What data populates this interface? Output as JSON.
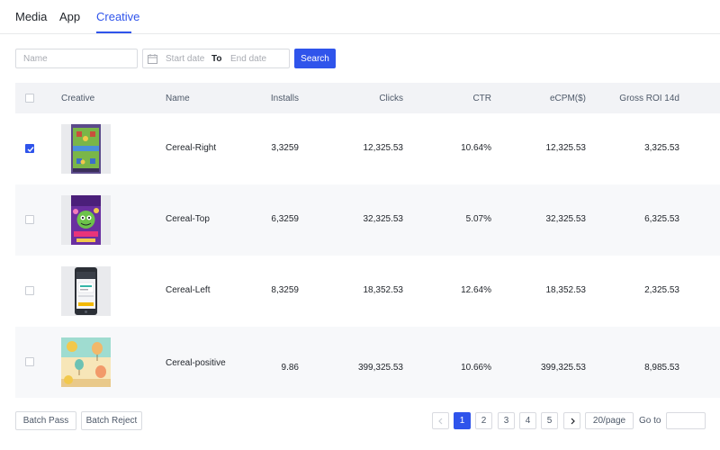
{
  "tabs": [
    {
      "label": "Media"
    },
    {
      "label": "App"
    },
    {
      "label": "Creative"
    }
  ],
  "active_tab": "Creative",
  "filters": {
    "name_placeholder": "Name",
    "start_placeholder": "Start date",
    "to_label": "To",
    "end_placeholder": "End date",
    "search_label": "Search"
  },
  "table": {
    "headers": {
      "creative": "Creative",
      "name": "Name",
      "installs": "Installs",
      "clicks": "Clicks",
      "ctr": "CTR",
      "ecpm": "eCPM($)",
      "roi": "Gross ROI 14d"
    },
    "rows": [
      {
        "checked": true,
        "thumb": "game-board-thumbnail",
        "name": "Cereal-Right",
        "installs": "3,3259",
        "clicks": "12,325.53",
        "ctr": "10.64%",
        "ecpm": "12,325.53",
        "roi": "3,325.53"
      },
      {
        "checked": false,
        "thumb": "monster-game-thumbnail",
        "name": "Cereal-Top",
        "installs": "6,3259",
        "clicks": "32,325.53",
        "ctr": "5.07%",
        "ecpm": "32,325.53",
        "roi": "6,325.53"
      },
      {
        "checked": false,
        "thumb": "phone-screen-thumbnail",
        "name": "Cereal-Left",
        "installs": "8,3259",
        "clicks": "18,352.53",
        "ctr": "12.64%",
        "ecpm": "18,352.53",
        "roi": "2,325.53"
      },
      {
        "checked": false,
        "thumb": "balloon-scene-thumbnail",
        "name": "Cereal-positive",
        "installs": "9.86",
        "clicks": "399,325.53",
        "ctr": "10.66%",
        "ecpm": "399,325.53",
        "roi": "8,985.53"
      }
    ]
  },
  "footer": {
    "batch_pass": "Batch Pass",
    "batch_reject": "Batch Reject",
    "pages": [
      "1",
      "2",
      "3",
      "4",
      "5"
    ],
    "current_page": "1",
    "page_size": "20/page",
    "goto_label": "Go to"
  },
  "colors": {
    "accent": "#2f54eb",
    "header_bg": "#f2f3f6",
    "row_alt_bg": "#f7f8fa"
  }
}
